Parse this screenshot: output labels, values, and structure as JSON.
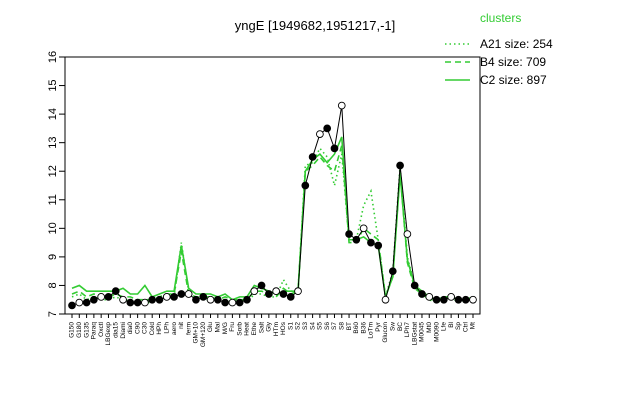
{
  "chart_data": {
    "type": "line",
    "title": "yngE [1949682,1951217,-1]",
    "ylim": [
      7,
      16
    ],
    "yticks": [
      7,
      8,
      9,
      10,
      11,
      12,
      13,
      14,
      15,
      16
    ],
    "xlabels": [
      "G150",
      "G180",
      "G135",
      "Paraq",
      "Oxctl",
      "LBGexp",
      "dia15",
      "Diami",
      "dia0",
      "C90",
      "C30",
      "Cold",
      "HPh",
      "LPh",
      "aero",
      "nit",
      "ferm",
      "GM+10",
      "GM+120",
      "Glu",
      "Mal",
      "M/G",
      "Fru",
      "Sorb",
      "Heat",
      "Ethe",
      "Salt",
      "Gly",
      "HTm",
      "HOs",
      "S1",
      "S2",
      "S3",
      "S4",
      "S5",
      "S6",
      "S7",
      "S8",
      "BT",
      "B60",
      "B36",
      "LoTm",
      "Pyr",
      "Glucon",
      "Sw",
      "BC",
      "LPh7",
      "LBGstat",
      "M0045",
      "Mt0",
      "M0090",
      "Lfe",
      "Bl",
      "Sp",
      "Ctrl",
      "Mt"
    ],
    "legend": {
      "title": "clusters",
      "entries": [
        {
          "label": "A21 size: 254",
          "style": "dotted",
          "color": "#33cc33"
        },
        {
          "label": "B4 size: 709",
          "style": "dashed",
          "color": "#33cc33"
        },
        {
          "label": "C2 size: 897",
          "style": "solid",
          "color": "#33cc33"
        }
      ]
    },
    "series": [
      {
        "name": "A21 size: 254",
        "style": "dotted",
        "color": "#33cc33",
        "values": [
          7.6,
          7.7,
          7.5,
          7.6,
          7.5,
          7.5,
          7.6,
          7.5,
          7.5,
          7.4,
          7.4,
          7.4,
          7.5,
          7.6,
          7.6,
          9.5,
          7.8,
          7.5,
          7.5,
          7.5,
          7.5,
          7.5,
          7.4,
          7.5,
          7.4,
          7.7,
          7.7,
          7.6,
          7.6,
          8.2,
          7.8,
          7.8,
          12.2,
          12.3,
          12.8,
          12.5,
          11.5,
          12.6,
          9.6,
          9.6,
          10.8,
          11.3,
          9.6,
          7.6,
          8.5,
          12.2,
          9.0,
          8.0,
          7.7,
          7.5,
          7.4,
          7.5,
          7.6,
          7.4,
          7.5,
          7.5
        ]
      },
      {
        "name": "B4 size: 709",
        "style": "dashed",
        "color": "#33cc33",
        "values": [
          7.7,
          7.8,
          7.6,
          7.7,
          7.6,
          7.6,
          7.7,
          7.6,
          7.6,
          7.5,
          7.5,
          7.5,
          7.6,
          7.7,
          7.7,
          9.2,
          7.7,
          7.6,
          7.6,
          7.6,
          7.5,
          7.6,
          7.5,
          7.5,
          7.5,
          7.8,
          7.8,
          7.7,
          7.6,
          7.9,
          7.7,
          7.8,
          12.0,
          12.2,
          12.5,
          12.2,
          12.0,
          12.9,
          9.5,
          9.5,
          10.0,
          9.8,
          9.6,
          7.6,
          8.3,
          12.0,
          8.8,
          7.9,
          7.7,
          7.5,
          7.5,
          7.6,
          7.6,
          7.5,
          7.5,
          7.6
        ]
      },
      {
        "name": "C2 size: 897",
        "style": "solid",
        "color": "#33cc33",
        "values": [
          7.9,
          8.0,
          7.8,
          7.8,
          7.8,
          7.8,
          7.8,
          7.9,
          7.7,
          7.7,
          8.0,
          7.6,
          7.7,
          7.8,
          7.8,
          9.4,
          7.9,
          7.7,
          7.7,
          7.7,
          7.6,
          7.7,
          7.5,
          7.6,
          7.6,
          8.0,
          7.9,
          7.8,
          7.7,
          7.8,
          7.8,
          7.8,
          12.0,
          12.4,
          12.6,
          12.3,
          12.6,
          13.2,
          9.6,
          9.6,
          9.7,
          9.5,
          9.4,
          7.6,
          8.3,
          11.9,
          8.9,
          8.0,
          7.8,
          7.6,
          7.5,
          7.6,
          7.6,
          7.5,
          7.5,
          7.6
        ]
      },
      {
        "name": "yngE",
        "style": "points",
        "color": "#000000",
        "values": [
          7.3,
          7.4,
          7.4,
          7.5,
          7.6,
          7.6,
          7.8,
          7.5,
          7.4,
          7.4,
          7.4,
          7.5,
          7.5,
          7.6,
          7.6,
          7.7,
          7.7,
          7.5,
          7.6,
          7.5,
          7.5,
          7.4,
          7.4,
          7.4,
          7.5,
          7.8,
          8.0,
          7.7,
          7.8,
          7.7,
          7.6,
          7.8,
          11.5,
          12.5,
          13.3,
          13.5,
          12.8,
          14.3,
          9.8,
          9.6,
          10.0,
          9.5,
          9.4,
          7.5,
          8.5,
          12.2,
          9.8,
          8.0,
          7.7,
          7.6,
          7.5,
          7.5,
          7.6,
          7.5,
          7.5,
          7.5
        ]
      }
    ]
  }
}
